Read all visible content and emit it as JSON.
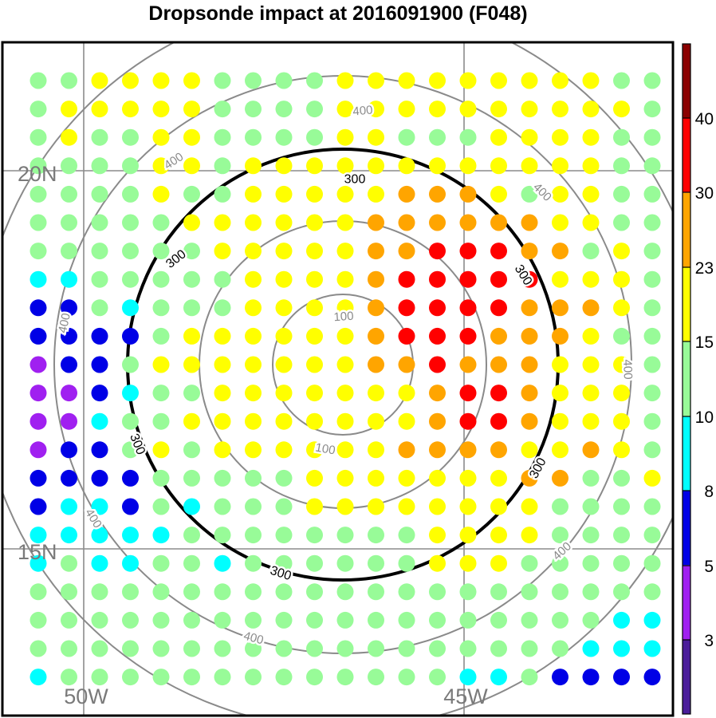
{
  "title": "Dropsonde impact at 2016091900 (F048)",
  "map": {
    "lat_labels": [
      "20N",
      "15N"
    ],
    "lon_labels": [
      "50W",
      "45W"
    ],
    "contours": [
      {
        "value": "100",
        "labels": [
          "100",
          "100"
        ],
        "emphasis": false
      },
      {
        "value": "200",
        "labels": [],
        "emphasis": false
      },
      {
        "value": "300",
        "labels": [
          "300",
          "300",
          "300",
          "300",
          "300"
        ],
        "emphasis": true
      },
      {
        "value": "400",
        "labels": [
          "400",
          "400",
          "400",
          "400",
          "400",
          "400",
          "400"
        ],
        "emphasis": false
      }
    ]
  },
  "colorbar": {
    "labels": [
      "3",
      "5",
      "8",
      "10",
      "15",
      "23",
      "30",
      "40"
    ],
    "colors": [
      "#4b1d9a",
      "#a020f0",
      "#0000e6",
      "#00ffff",
      "#98fb98",
      "#ffff00",
      "#ffa500",
      "#ff0000",
      "#8b0000"
    ]
  },
  "grid": {
    "rows": [
      "CCDDDDCCCCDDDDDDDDDCCCC",
      "CDDDDDCCCCDDDDDDDDDDCCC",
      "CDCCDDCCCCDDCCCDDDDCCCC",
      "CCCCDDCDDDDDDDDDDDDCCCC",
      "CCCCDCCDDDDDEEEDCDDCCCC",
      "CCCCCDDDDDDEEEEEEDDCCCC",
      "CCCCCCDDDDDEEFFFEECDCCC",
      "BBCCCCCDDDDEFFFFFDDDCCC",
      "AACBCCCDDDDEFFFFEEEDCCC",
      "AAAACDDDDDDEFFFEEEDCCCC",
      "9AACDDDDDDDEEFEEEDDDCCC",
      "99ABCCDDDDDDDEFFEDDDCCC",
      "99BCCDDDDDDDDEFFEDDDCCD",
      "9AACDCDDDDDDEEEEDDEDCCC",
      "AAAACCCCCDDDDDDDEECCDCC",
      "ABBACBCCCDDDDDDDDCCCCCC",
      "BBBBBCCCCCCCCDDDDCCCCCB",
      "BCBBCCBCCCCCCDDDCCCCCCC",
      "CCCCCCCCCCCCCCCCCCCCCCB",
      "CCCCCCCCCCCCCCCCCCCBBBA",
      "CCCCCCCCCCCCCCCCCCBBBBA",
      "BCCCCCCCCCCCCCBBCAAAAAA"
    ]
  }
}
